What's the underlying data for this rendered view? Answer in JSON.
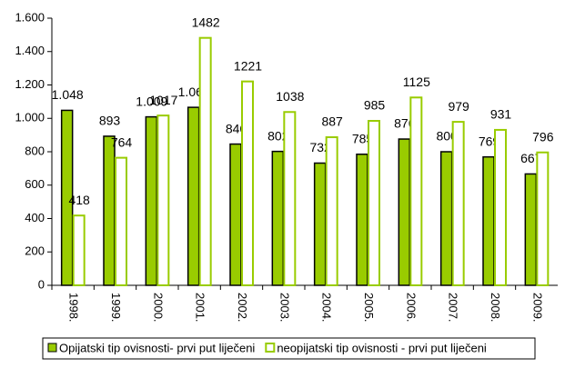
{
  "chart_data": {
    "type": "bar",
    "categories": [
      "1998.",
      "1999.",
      "2000.",
      "2001.",
      "2002.",
      "2003.",
      "2004.",
      "2005.",
      "2006.",
      "2007.",
      "2008.",
      "2009."
    ],
    "series": [
      {
        "name": "Opijatski tip ovisnosti- prvi put liječeni",
        "color": "#99cc00",
        "fill": true,
        "values": [
          1048,
          893,
          1009,
          1066,
          846,
          802,
          732,
          785,
          876,
          800,
          769,
          667
        ],
        "value_labels": [
          "1.048",
          "893",
          "1.009",
          "1.066",
          "846",
          "802",
          "732",
          "785",
          "876",
          "800",
          "769",
          "667"
        ]
      },
      {
        "name": "neopijatski tip ovisnosti - prvi put liječeni",
        "color": "#99cc00",
        "fill": false,
        "values": [
          418,
          764,
          1017,
          1482,
          1221,
          1038,
          887,
          985,
          1125,
          979,
          931,
          796
        ]
      }
    ],
    "ylim": [
      0,
      1600
    ],
    "yticks": [
      0,
      200,
      400,
      600,
      800,
      {
        "value": 1000,
        "label": "1.000"
      },
      {
        "value": 1200,
        "label": "1.200"
      },
      {
        "value": 1400,
        "label": "1.400"
      },
      {
        "value": 1600,
        "label": "1.600"
      }
    ],
    "legend": "bottom"
  }
}
